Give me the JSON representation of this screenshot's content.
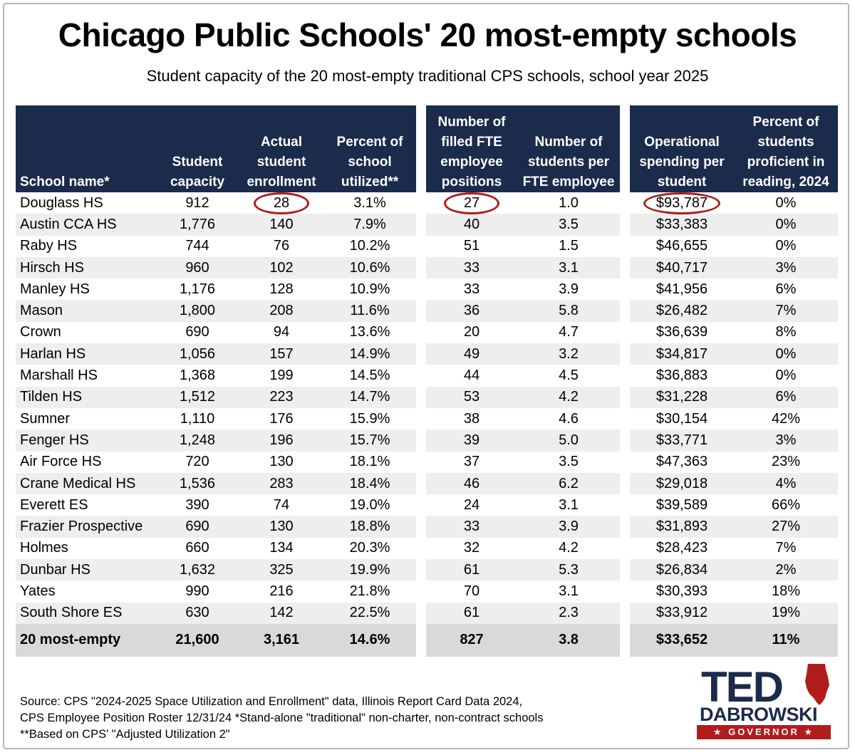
{
  "title": "Chicago Public Schools' 20 most-empty schools",
  "subtitle": "Student capacity of the 20 most-empty traditional CPS schools, school year 2025",
  "chart_data": {
    "type": "table",
    "columns": [
      "School name*",
      "Student capacity",
      "Actual student enrollment",
      "Percent of school utilized**",
      "Number of filled FTE employee positions",
      "Number of students per FTE employee",
      "Operational spending per student",
      "Percent of students proficient in reading, 2024"
    ],
    "rows": [
      [
        "Douglass HS",
        "912",
        "28",
        "3.1%",
        "27",
        "1.0",
        "$93,787",
        "0%"
      ],
      [
        "Austin CCA HS",
        "1,776",
        "140",
        "7.9%",
        "40",
        "3.5",
        "$33,383",
        "0%"
      ],
      [
        "Raby HS",
        "744",
        "76",
        "10.2%",
        "51",
        "1.5",
        "$46,655",
        "0%"
      ],
      [
        "Hirsch HS",
        "960",
        "102",
        "10.6%",
        "33",
        "3.1",
        "$40,717",
        "3%"
      ],
      [
        "Manley HS",
        "1,176",
        "128",
        "10.9%",
        "33",
        "3.9",
        "$41,956",
        "6%"
      ],
      [
        "Mason",
        "1,800",
        "208",
        "11.6%",
        "36",
        "5.8",
        "$26,482",
        "7%"
      ],
      [
        "Crown",
        "690",
        "94",
        "13.6%",
        "20",
        "4.7",
        "$36,639",
        "8%"
      ],
      [
        "Harlan HS",
        "1,056",
        "157",
        "14.9%",
        "49",
        "3.2",
        "$34,817",
        "0%"
      ],
      [
        "Marshall HS",
        "1,368",
        "199",
        "14.5%",
        "44",
        "4.5",
        "$36,883",
        "0%"
      ],
      [
        "Tilden HS",
        "1,512",
        "223",
        "14.7%",
        "53",
        "4.2",
        "$31,228",
        "6%"
      ],
      [
        "Sumner",
        "1,110",
        "176",
        "15.9%",
        "38",
        "4.6",
        "$30,154",
        "42%"
      ],
      [
        "Fenger HS",
        "1,248",
        "196",
        "15.7%",
        "39",
        "5.0",
        "$33,771",
        "3%"
      ],
      [
        "Air Force HS",
        "720",
        "130",
        "18.1%",
        "37",
        "3.5",
        "$47,363",
        "23%"
      ],
      [
        "Crane Medical HS",
        "1,536",
        "283",
        "18.4%",
        "46",
        "6.2",
        "$29,018",
        "4%"
      ],
      [
        "Everett ES",
        "390",
        "74",
        "19.0%",
        "24",
        "3.1",
        "$39,589",
        "66%"
      ],
      [
        "Frazier Prospective",
        "690",
        "130",
        "18.8%",
        "33",
        "3.9",
        "$31,893",
        "27%"
      ],
      [
        "Holmes",
        "660",
        "134",
        "20.3%",
        "32",
        "4.2",
        "$28,423",
        "7%"
      ],
      [
        "Dunbar HS",
        "1,632",
        "325",
        "19.9%",
        "61",
        "5.3",
        "$26,834",
        "2%"
      ],
      [
        "Yates",
        "990",
        "216",
        "21.8%",
        "70",
        "3.1",
        "$30,393",
        "18%"
      ],
      [
        "South Shore ES",
        "630",
        "142",
        "22.5%",
        "61",
        "2.3",
        "$33,912",
        "19%"
      ]
    ],
    "total": [
      "20 most-empty",
      "21,600",
      "3,161",
      "14.6%",
      "827",
      "3.8",
      "$33,652",
      "11%"
    ],
    "highlighted": [
      "28",
      "27",
      "$93,787"
    ],
    "highlight_color": "#b11c1c",
    "header_color": "#1b2b4b"
  },
  "source": {
    "line1": "Source: CPS \"2024-2025 Space Utilization and Enrollment\" data, Illinois Report Card Data 2024,",
    "line2": "CPS Employee Position Roster 12/31/24   *Stand-alone \"traditional\" non-charter, non-contract schools",
    "line3": "**Based on CPS' \"Adjusted Utilization 2\""
  },
  "logo": {
    "name_top": "TED",
    "name_bottom": "DABROWSKI",
    "office": "★ GOVERNOR ★",
    "icon": "illinois-state-icon"
  }
}
